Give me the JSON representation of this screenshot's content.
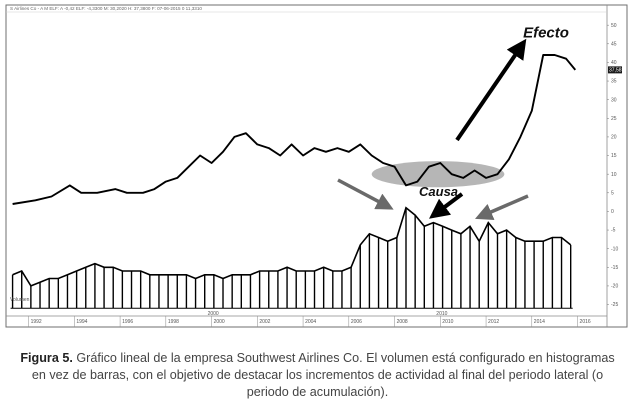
{
  "chart_data": {
    "type": "line",
    "header_text": "S Airlines Co - A M ELF: A -0,42 ELF: -4,3300 M: 30,2020 H: 37,3800 F: 07-06-2015 0 11,3310",
    "price_badge": "37,58",
    "x_ticks": [
      "1992",
      "1994",
      "1996",
      "1998",
      "2000",
      "2002",
      "2004",
      "2006",
      "2008",
      "2010",
      "2012",
      "2014",
      "2016"
    ],
    "x_decade_labels": [
      {
        "year": 2000,
        "label": "2000"
      },
      {
        "year": 2010,
        "label": "2010"
      }
    ],
    "y_ticks": [
      50,
      45,
      40,
      35,
      30,
      25,
      20,
      15,
      10,
      5,
      0,
      -5,
      -10,
      -15,
      -20,
      -25
    ],
    "ylim": [
      -27,
      53
    ],
    "xlim": [
      1991.1,
      2017.2
    ],
    "volume_label": "Volumen",
    "price_series": {
      "x": [
        1991.3,
        1992.3,
        1993.0,
        1993.8,
        1994.3,
        1995.0,
        1995.8,
        1996.3,
        1997.0,
        1997.5,
        1998.0,
        1998.5,
        1999.0,
        1999.5,
        2000.0,
        2000.5,
        2001.0,
        2001.5,
        2002.0,
        2002.5,
        2003.0,
        2003.5,
        2004.0,
        2004.5,
        2005.0,
        2005.5,
        2006.0,
        2006.5,
        2007.0,
        2007.5,
        2008.0,
        2008.5,
        2009.0,
        2009.5,
        2010.0,
        2010.5,
        2011.0,
        2011.5,
        2012.0,
        2012.5,
        2013.0,
        2013.5,
        2014.0,
        2014.5,
        2015.0,
        2015.5,
        2015.9
      ],
      "y": [
        2,
        3,
        4,
        7,
        5,
        5,
        6,
        5,
        5,
        6,
        8,
        9,
        12,
        15,
        13,
        16,
        20,
        21,
        18,
        17,
        15,
        18,
        15,
        17,
        16,
        17,
        16,
        18,
        15,
        13,
        12,
        7,
        8,
        12,
        13,
        10,
        9,
        11,
        9,
        10,
        14,
        20,
        27,
        42,
        42,
        41,
        38
      ]
    },
    "volume_series": {
      "x": [
        1991.3,
        1991.7,
        1992.1,
        1992.5,
        1992.9,
        1993.3,
        1993.7,
        1994.1,
        1994.5,
        1994.9,
        1995.3,
        1995.7,
        1996.1,
        1996.5,
        1996.9,
        1997.3,
        1997.7,
        1998.1,
        1998.5,
        1998.9,
        1999.3,
        1999.7,
        2000.1,
        2000.5,
        2000.9,
        2001.3,
        2001.7,
        2002.1,
        2002.5,
        2002.9,
        2003.3,
        2003.7,
        2004.1,
        2004.5,
        2004.9,
        2005.3,
        2005.7,
        2006.1,
        2006.5,
        2006.9,
        2007.3,
        2007.7,
        2008.1,
        2008.5,
        2008.9,
        2009.3,
        2009.7,
        2010.1,
        2010.5,
        2010.9,
        2011.3,
        2011.7,
        2012.1,
        2012.5,
        2012.9,
        2013.3,
        2013.7,
        2014.1,
        2014.5,
        2014.9,
        2015.3,
        2015.7
      ],
      "y": [
        -17,
        -16,
        -20,
        -19,
        -18,
        -18,
        -17,
        -16,
        -15,
        -14,
        -15,
        -15,
        -16,
        -16,
        -16,
        -17,
        -17,
        -17,
        -17,
        -17,
        -18,
        -17,
        -17,
        -18,
        -17,
        -17,
        -17,
        -16,
        -16,
        -16,
        -15,
        -16,
        -16,
        -16,
        -15,
        -16,
        -16,
        -15,
        -9,
        -6,
        -7,
        -8,
        -7,
        1,
        -1,
        -4,
        -3,
        -4,
        -5,
        -6,
        -4,
        -8,
        -3,
        -6,
        -5,
        -7,
        -8,
        -8,
        -8,
        -7,
        -7,
        -9
      ]
    },
    "annotations": [
      {
        "text": "Efecto",
        "x": 2014.8,
        "y": 48
      },
      {
        "text": "Causa",
        "x": 2009.9,
        "y": 5.5
      }
    ],
    "grid": false
  },
  "caption": {
    "label": "Figura 5.",
    "text": " Gráfico lineal de la empresa Southwest Airlines Co. El volumen está configurado en histogramas en vez de barras, con el objetivo de destacar los incrementos de actividad al final del periodo lateral (o periodo de acumulación)."
  }
}
